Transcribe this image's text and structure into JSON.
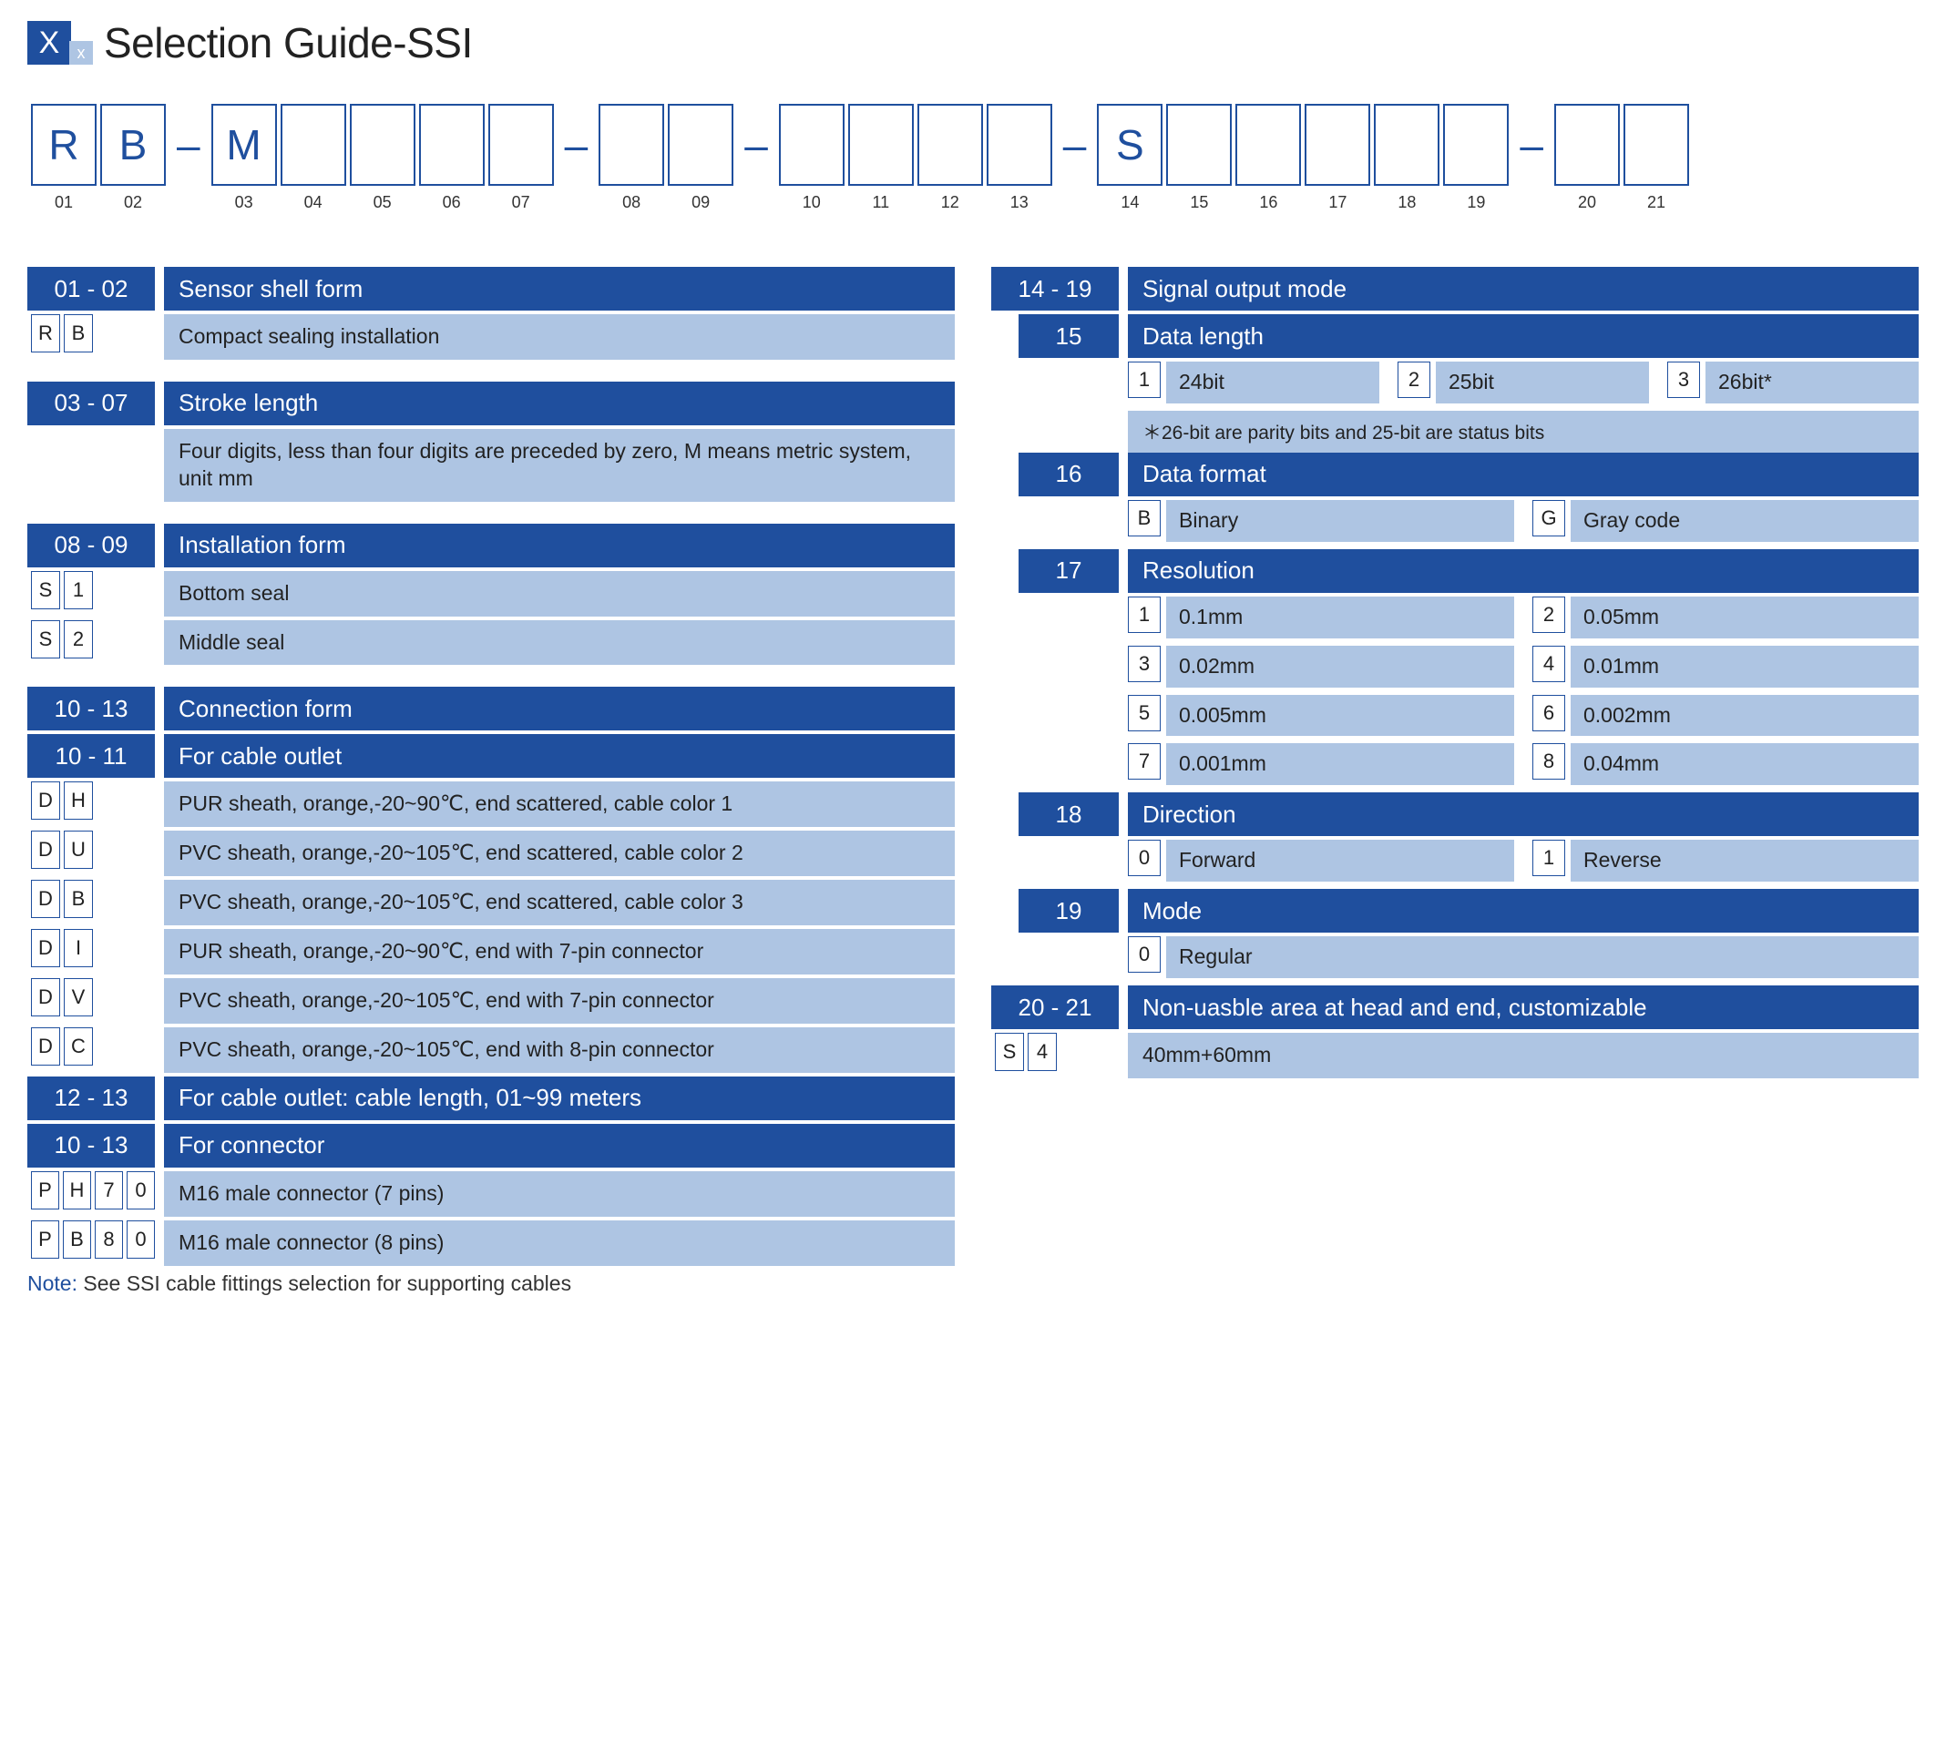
{
  "title": "Selection Guide-SSI",
  "icon": {
    "big": "X",
    "small": "x"
  },
  "colors": {
    "primary": "#1f4f9e",
    "lightBlue": "#aec5e3",
    "white": "#ffffff"
  },
  "codeStrip": [
    {
      "t": "box",
      "v": "R",
      "n": "01"
    },
    {
      "t": "box",
      "v": "B",
      "n": "02"
    },
    {
      "t": "dash"
    },
    {
      "t": "box",
      "v": "M",
      "n": "03"
    },
    {
      "t": "box",
      "v": "",
      "n": "04"
    },
    {
      "t": "box",
      "v": "",
      "n": "05"
    },
    {
      "t": "box",
      "v": "",
      "n": "06"
    },
    {
      "t": "box",
      "v": "",
      "n": "07"
    },
    {
      "t": "dash"
    },
    {
      "t": "box",
      "v": "",
      "n": "08"
    },
    {
      "t": "box",
      "v": "",
      "n": "09"
    },
    {
      "t": "dash"
    },
    {
      "t": "box",
      "v": "",
      "n": "10"
    },
    {
      "t": "box",
      "v": "",
      "n": "11"
    },
    {
      "t": "box",
      "v": "",
      "n": "12"
    },
    {
      "t": "box",
      "v": "",
      "n": "13"
    },
    {
      "t": "dash"
    },
    {
      "t": "box",
      "v": "S",
      "n": "14"
    },
    {
      "t": "box",
      "v": "",
      "n": "15"
    },
    {
      "t": "box",
      "v": "",
      "n": "16"
    },
    {
      "t": "box",
      "v": "",
      "n": "17"
    },
    {
      "t": "box",
      "v": "",
      "n": "18"
    },
    {
      "t": "box",
      "v": "",
      "n": "19"
    },
    {
      "t": "dash"
    },
    {
      "t": "box",
      "v": "",
      "n": "20"
    },
    {
      "t": "box",
      "v": "",
      "n": "21"
    }
  ],
  "left": {
    "s01": {
      "tag": "01 - 02",
      "title": "Sensor shell form",
      "rows": [
        {
          "codes": [
            "R",
            "B"
          ],
          "desc": "Compact sealing installation"
        }
      ]
    },
    "s03": {
      "tag": "03 - 07",
      "title": "Stroke length",
      "desc": "Four digits, less than four digits are preceded by zero, M means metric system, unit mm"
    },
    "s08": {
      "tag": "08 - 09",
      "title": "Installation form",
      "rows": [
        {
          "codes": [
            "S",
            "1"
          ],
          "desc": "Bottom seal"
        },
        {
          "codes": [
            "S",
            "2"
          ],
          "desc": "Middle seal"
        }
      ]
    },
    "s10": {
      "tag": "10 - 13",
      "title": "Connection form"
    },
    "s10a": {
      "tag": "10 - 11",
      "title": "For cable outlet",
      "rows": [
        {
          "codes": [
            "D",
            "H"
          ],
          "desc": "PUR sheath, orange,-20~90℃, end scattered, cable color 1"
        },
        {
          "codes": [
            "D",
            "U"
          ],
          "desc": "PVC sheath, orange,-20~105℃, end scattered, cable color 2"
        },
        {
          "codes": [
            "D",
            "B"
          ],
          "desc": "PVC sheath, orange,-20~105℃, end scattered, cable color 3"
        },
        {
          "codes": [
            "D",
            "I"
          ],
          "desc": "PUR sheath, orange,-20~90℃, end with 7-pin connector"
        },
        {
          "codes": [
            "D",
            "V"
          ],
          "desc": "PVC sheath, orange,-20~105℃, end with 7-pin connector"
        },
        {
          "codes": [
            "D",
            "C"
          ],
          "desc": "PVC sheath, orange,-20~105℃, end with 8-pin connector"
        }
      ]
    },
    "s12": {
      "tag": "12 - 13",
      "title": "For cable outlet: cable length, 01~99 meters"
    },
    "s10b": {
      "tag": "10 - 13",
      "title": "For connector",
      "rows": [
        {
          "codes": [
            "P",
            "H",
            "7",
            "0"
          ],
          "desc": "M16 male connector (7 pins)"
        },
        {
          "codes": [
            "P",
            "B",
            "8",
            "0"
          ],
          "desc": "M16 male connector (8 pins)"
        }
      ]
    },
    "note": {
      "label": "Note:",
      "text": " See SSI cable fittings selection for supporting cables"
    }
  },
  "right": {
    "s14": {
      "tag": "14 - 19",
      "title": "Signal output mode"
    },
    "s15": {
      "tag": "15",
      "title": "Data length",
      "opts": [
        {
          "c": "1",
          "d": "24bit"
        },
        {
          "c": "2",
          "d": "25bit"
        },
        {
          "c": "3",
          "d": "26bit*"
        }
      ],
      "note": "＊26-bit are parity bits and 25-bit are status bits"
    },
    "s16": {
      "tag": "16",
      "title": "Data format",
      "opts": [
        {
          "c": "B",
          "d": "Binary"
        },
        {
          "c": "G",
          "d": "Gray code"
        }
      ]
    },
    "s17": {
      "tag": "17",
      "title": "Resolution",
      "opts": [
        {
          "c": "1",
          "d": "0.1mm"
        },
        {
          "c": "2",
          "d": "0.05mm"
        },
        {
          "c": "3",
          "d": "0.02mm"
        },
        {
          "c": "4",
          "d": "0.01mm"
        },
        {
          "c": "5",
          "d": "0.005mm"
        },
        {
          "c": "6",
          "d": "0.002mm"
        },
        {
          "c": "7",
          "d": "0.001mm"
        },
        {
          "c": "8",
          "d": "0.04mm"
        }
      ]
    },
    "s18": {
      "tag": "18",
      "title": "Direction",
      "opts": [
        {
          "c": "0",
          "d": "Forward"
        },
        {
          "c": "1",
          "d": "Reverse"
        }
      ]
    },
    "s19": {
      "tag": "19",
      "title": "Mode",
      "opts": [
        {
          "c": "0",
          "d": "Regular"
        }
      ]
    },
    "s20": {
      "tag": "20 - 21",
      "title": "Non-uasble area at head and end, customizable",
      "rows": [
        {
          "codes": [
            "S",
            "4"
          ],
          "desc": "40mm+60mm"
        }
      ]
    }
  }
}
